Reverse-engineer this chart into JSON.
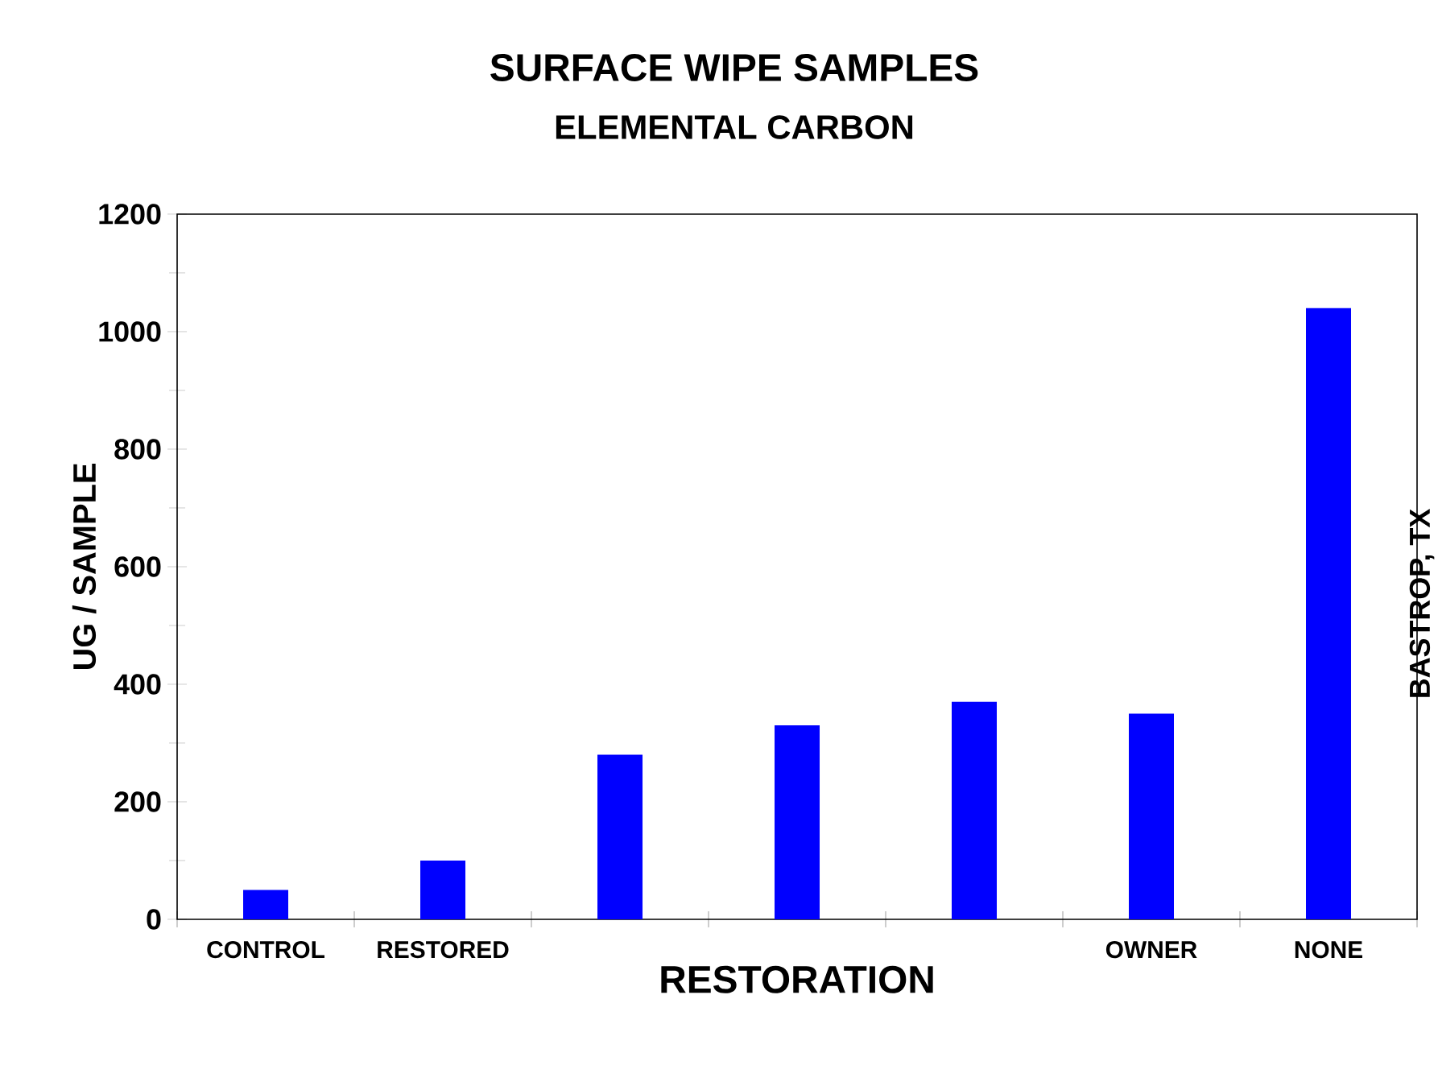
{
  "chart_data": {
    "type": "bar",
    "title": "SURFACE WIPE SAMPLES",
    "subtitle": "ELEMENTAL CARBON",
    "xlabel": "RESTORATION",
    "ylabel": "UG / SAMPLE",
    "categories": [
      "CONTROL",
      "RESTORED",
      null,
      null,
      null,
      "OWNER",
      "NONE"
    ],
    "values": [
      50,
      100,
      280,
      330,
      370,
      350,
      1040
    ],
    "color": "#0000ff",
    "ylim": [
      0,
      1200
    ],
    "yticks": [
      0,
      200,
      400,
      600,
      800,
      1000,
      1200
    ],
    "annotations": [
      "BASTROP, TX"
    ]
  }
}
